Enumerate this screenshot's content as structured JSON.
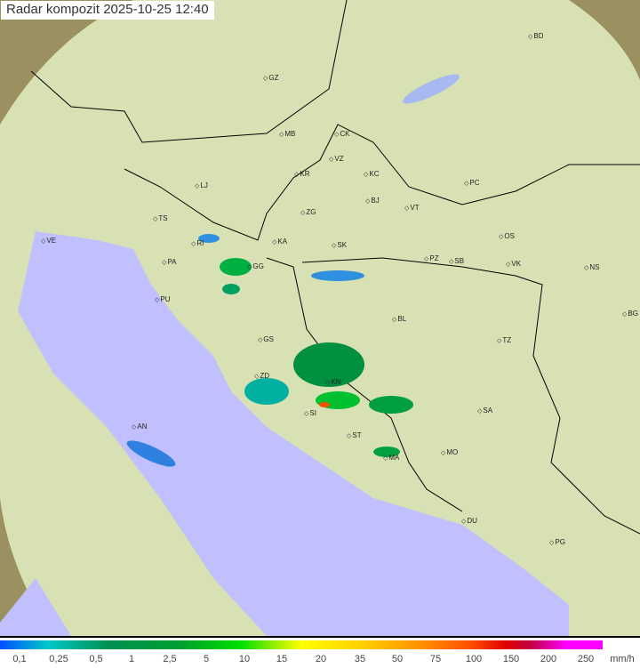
{
  "title": "Radar kompozit  2025-10-25   12:40",
  "cities": [
    "BD",
    "GZ",
    "MB",
    "CK",
    "VZ",
    "KR",
    "KC",
    "PC",
    "LJ",
    "BJ",
    "ZG",
    "VT",
    "TS",
    "VE",
    "OS",
    "KA",
    "SK",
    "RI",
    "PA",
    "PZ",
    "SB",
    "VK",
    "NS",
    "GG",
    "PU",
    "BG",
    "BL",
    "GS",
    "TZ",
    "ZD",
    "KN",
    "SA",
    "SI",
    "AN",
    "ST",
    "MO",
    "MA",
    "DU",
    "PG"
  ],
  "legend": {
    "ticks": [
      "0,1",
      "0,25",
      "0,5",
      "1",
      "2,5",
      "5",
      "10",
      "15",
      "20",
      "35",
      "50",
      "75",
      "100",
      "150",
      "200",
      "250"
    ],
    "unit": "mm/h"
  },
  "colors": {
    "sea": "#c0c0ff",
    "land": "#d8e8b0",
    "terrain": "#a89a60"
  }
}
